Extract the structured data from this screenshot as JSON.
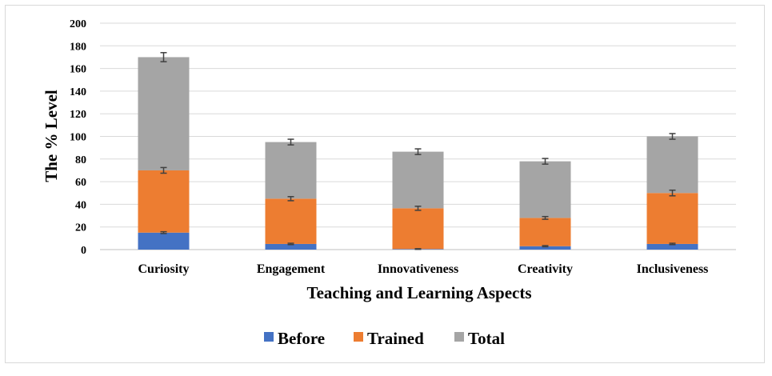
{
  "chart_data": {
    "type": "bar",
    "stacked": true,
    "categories": [
      "Curiosity",
      "Engagement",
      "Innovativeness",
      "Creativity",
      "Inclusiveness"
    ],
    "series": [
      {
        "name": "Before",
        "color": "#4472c4",
        "values": [
          15,
          5,
          0.5,
          3,
          5
        ],
        "errors": [
          0.8,
          0.6,
          0.3,
          0.5,
          0.6
        ]
      },
      {
        "name": "Trained",
        "color": "#ed7d31",
        "values": [
          55,
          40,
          36,
          25,
          45
        ],
        "errors": [
          2.5,
          1.8,
          1.8,
          1.2,
          2.5
        ]
      },
      {
        "name": "Total",
        "color": "#a5a5a5",
        "values": [
          100,
          50,
          50,
          50,
          50
        ],
        "errors": [
          4.0,
          2.5,
          2.5,
          2.5,
          2.5
        ]
      }
    ],
    "xlabel": "Teaching and Learning Aspects",
    "ylabel": "The % Level",
    "ylim": [
      0,
      200
    ],
    "yticks": [
      0,
      20,
      40,
      60,
      80,
      100,
      120,
      140,
      160,
      180,
      200
    ],
    "grid": true,
    "legend_position": "bottom"
  }
}
